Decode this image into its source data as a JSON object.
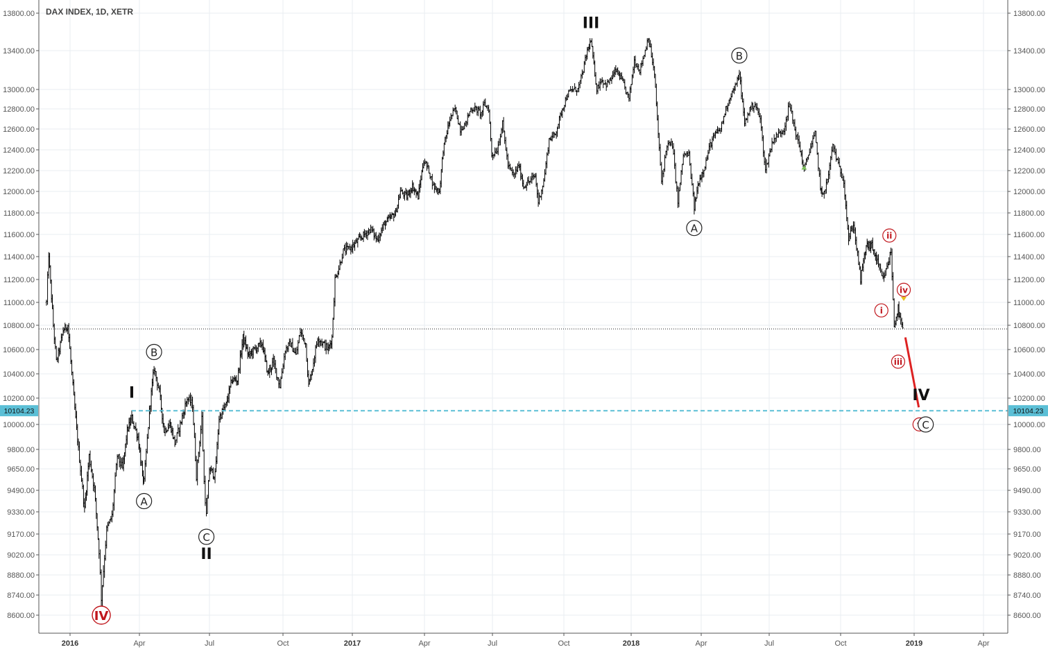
{
  "title": "DAX INDEX, 1D, XETR",
  "chart_data": {
    "type": "ohlc",
    "title": "DAX INDEX, 1D, XETR",
    "y_ticks": [
      "13800.00",
      "13400.00",
      "13000.00",
      "12800.00",
      "12600.00",
      "12400.00",
      "12200.00",
      "12000.00",
      "11800.00",
      "11600.00",
      "11400.00",
      "11200.00",
      "11000.00",
      "10800.00",
      "10600.00",
      "10400.00",
      "10200.00",
      "10000.00",
      "9800.00",
      "9650.00",
      "9490.00",
      "9330.00",
      "9170.00",
      "9020.00",
      "8880.00",
      "8740.00",
      "8600.00"
    ],
    "x_ticks": [
      "2016",
      "Apr",
      "Jul",
      "Oct",
      "2017",
      "Apr",
      "Jul",
      "Oct",
      "2018",
      "Apr",
      "Jul",
      "Oct",
      "2019",
      "Apr"
    ],
    "x_tick_years": [
      true,
      false,
      false,
      false,
      true,
      false,
      false,
      false,
      true,
      false,
      false,
      false,
      true,
      false
    ],
    "price_line": {
      "label": "10104.23",
      "value": 10104.23,
      "color": "#5bbfd6"
    },
    "current_price_line": 10770,
    "price_path": [
      [
        "2015-12-01",
        11000
      ],
      [
        "2015-12-04",
        11420
      ],
      [
        "2015-12-10",
        10800
      ],
      [
        "2015-12-14",
        10500
      ],
      [
        "2015-12-18",
        10600
      ],
      [
        "2015-12-23",
        10760
      ],
      [
        "2015-12-29",
        10800
      ],
      [
        "2016-01-06",
        10200
      ],
      [
        "2016-01-12",
        9800
      ],
      [
        "2016-01-20",
        9350
      ],
      [
        "2016-01-26",
        9750
      ],
      [
        "2016-02-02",
        9500
      ],
      [
        "2016-02-08",
        9050
      ],
      [
        "2016-02-11",
        8720
      ],
      [
        "2016-02-18",
        9200
      ],
      [
        "2016-02-25",
        9300
      ],
      [
        "2016-03-03",
        9750
      ],
      [
        "2016-03-10",
        9650
      ],
      [
        "2016-03-16",
        9950
      ],
      [
        "2016-03-22",
        10050
      ],
      [
        "2016-03-30",
        9900
      ],
      [
        "2016-04-05",
        9600
      ],
      [
        "2016-04-07",
        9550
      ],
      [
        "2016-04-14",
        10100
      ],
      [
        "2016-04-20",
        10450
      ],
      [
        "2016-04-27",
        10250
      ],
      [
        "2016-05-03",
        9950
      ],
      [
        "2016-05-11",
        10000
      ],
      [
        "2016-05-17",
        9850
      ],
      [
        "2016-05-24",
        10000
      ],
      [
        "2016-06-02",
        10200
      ],
      [
        "2016-06-09",
        10150
      ],
      [
        "2016-06-14",
        9600
      ],
      [
        "2016-06-21",
        10050
      ],
      [
        "2016-06-24",
        9550
      ],
      [
        "2016-06-27",
        9300
      ],
      [
        "2016-07-01",
        9650
      ],
      [
        "2016-07-08",
        9600
      ],
      [
        "2016-07-13",
        10050
      ],
      [
        "2016-07-22",
        10150
      ],
      [
        "2016-07-29",
        10350
      ],
      [
        "2016-08-05",
        10350
      ],
      [
        "2016-08-12",
        10700
      ],
      [
        "2016-08-19",
        10550
      ],
      [
        "2016-08-26",
        10600
      ],
      [
        "2016-09-05",
        10650
      ],
      [
        "2016-09-12",
        10400
      ],
      [
        "2016-09-19",
        10500
      ],
      [
        "2016-09-27",
        10300
      ],
      [
        "2016-10-04",
        10600
      ],
      [
        "2016-10-11",
        10650
      ],
      [
        "2016-10-18",
        10550
      ],
      [
        "2016-10-24",
        10750
      ],
      [
        "2016-10-31",
        10650
      ],
      [
        "2016-11-04",
        10300
      ],
      [
        "2016-11-09",
        10450
      ],
      [
        "2016-11-16",
        10700
      ],
      [
        "2016-11-23",
        10650
      ],
      [
        "2016-11-30",
        10600
      ],
      [
        "2016-12-05",
        10700
      ],
      [
        "2016-12-09",
        11200
      ],
      [
        "2016-12-14",
        11300
      ],
      [
        "2016-12-20",
        11450
      ],
      [
        "2016-12-30",
        11480
      ],
      [
        "2017-01-09",
        11550
      ],
      [
        "2017-01-16",
        11600
      ],
      [
        "2017-01-24",
        11650
      ],
      [
        "2017-02-01",
        11550
      ],
      [
        "2017-02-10",
        11700
      ],
      [
        "2017-02-17",
        11750
      ],
      [
        "2017-02-24",
        11800
      ],
      [
        "2017-03-02",
        12000
      ],
      [
        "2017-03-10",
        11950
      ],
      [
        "2017-03-17",
        12050
      ],
      [
        "2017-03-24",
        11950
      ],
      [
        "2017-03-31",
        12300
      ],
      [
        "2017-04-07",
        12200
      ],
      [
        "2017-04-13",
        12050
      ],
      [
        "2017-04-21",
        12000
      ],
      [
        "2017-04-26",
        12400
      ],
      [
        "2017-05-05",
        12700
      ],
      [
        "2017-05-12",
        12800
      ],
      [
        "2017-05-19",
        12600
      ],
      [
        "2017-05-26",
        12650
      ],
      [
        "2017-06-02",
        12800
      ],
      [
        "2017-06-09",
        12800
      ],
      [
        "2017-06-16",
        12750
      ],
      [
        "2017-06-20",
        12850
      ],
      [
        "2017-06-26",
        12800
      ],
      [
        "2017-06-30",
        12350
      ],
      [
        "2017-07-07",
        12400
      ],
      [
        "2017-07-14",
        12650
      ],
      [
        "2017-07-21",
        12250
      ],
      [
        "2017-07-28",
        12150
      ],
      [
        "2017-08-04",
        12250
      ],
      [
        "2017-08-10",
        12050
      ],
      [
        "2017-08-18",
        12100
      ],
      [
        "2017-08-25",
        12150
      ],
      [
        "2017-08-29",
        11900
      ],
      [
        "2017-09-05",
        12100
      ],
      [
        "2017-09-12",
        12500
      ],
      [
        "2017-09-20",
        12550
      ],
      [
        "2017-09-29",
        12800
      ],
      [
        "2017-10-06",
        12950
      ],
      [
        "2017-10-13",
        13000
      ],
      [
        "2017-10-20",
        13000
      ],
      [
        "2017-10-26",
        13150
      ],
      [
        "2017-11-02",
        13400
      ],
      [
        "2017-11-07",
        13500
      ],
      [
        "2017-11-15",
        13000
      ],
      [
        "2017-11-21",
        13100
      ],
      [
        "2017-11-28",
        13050
      ],
      [
        "2017-12-04",
        13100
      ],
      [
        "2017-12-11",
        13200
      ],
      [
        "2017-12-19",
        13100
      ],
      [
        "2017-12-29",
        12900
      ],
      [
        "2018-01-05",
        13300
      ],
      [
        "2018-01-12",
        13200
      ],
      [
        "2018-01-19",
        13400
      ],
      [
        "2018-01-23",
        13550
      ],
      [
        "2018-01-31",
        13150
      ],
      [
        "2018-02-06",
        12400
      ],
      [
        "2018-02-09",
        12100
      ],
      [
        "2018-02-16",
        12450
      ],
      [
        "2018-02-23",
        12450
      ],
      [
        "2018-03-02",
        11900
      ],
      [
        "2018-03-09",
        12350
      ],
      [
        "2018-03-16",
        12350
      ],
      [
        "2018-03-23",
        11850
      ],
      [
        "2018-03-29",
        12100
      ],
      [
        "2018-04-06",
        12250
      ],
      [
        "2018-04-13",
        12450
      ],
      [
        "2018-04-20",
        12550
      ],
      [
        "2018-04-27",
        12600
      ],
      [
        "2018-05-04",
        12800
      ],
      [
        "2018-05-11",
        12950
      ],
      [
        "2018-05-18",
        13050
      ],
      [
        "2018-05-22",
        13170
      ],
      [
        "2018-05-29",
        12650
      ],
      [
        "2018-06-05",
        12800
      ],
      [
        "2018-06-12",
        12850
      ],
      [
        "2018-06-19",
        12700
      ],
      [
        "2018-06-26",
        12200
      ],
      [
        "2018-06-29",
        12300
      ],
      [
        "2018-07-06",
        12500
      ],
      [
        "2018-07-13",
        12550
      ],
      [
        "2018-07-20",
        12600
      ],
      [
        "2018-07-27",
        12850
      ],
      [
        "2018-08-03",
        12600
      ],
      [
        "2018-08-10",
        12400
      ],
      [
        "2018-08-15",
        12200
      ],
      [
        "2018-08-22",
        12400
      ],
      [
        "2018-08-29",
        12550
      ],
      [
        "2018-09-05",
        12050
      ],
      [
        "2018-09-07",
        11950
      ],
      [
        "2018-09-14",
        12100
      ],
      [
        "2018-09-21",
        12450
      ],
      [
        "2018-09-28",
        12250
      ],
      [
        "2018-10-05",
        12100
      ],
      [
        "2018-10-11",
        11550
      ],
      [
        "2018-10-17",
        11700
      ],
      [
        "2018-10-26",
        11200
      ],
      [
        "2018-11-02",
        11500
      ],
      [
        "2018-11-09",
        11500
      ],
      [
        "2018-11-16",
        11350
      ],
      [
        "2018-11-20",
        11250
      ],
      [
        "2018-11-23",
        11200
      ],
      [
        "2018-11-28",
        11300
      ],
      [
        "2018-12-03",
        11450
      ],
      [
        "2018-12-07",
        10800
      ],
      [
        "2018-12-12",
        10950
      ],
      [
        "2018-12-14",
        10850
      ],
      [
        "2018-12-19",
        10750
      ]
    ],
    "forecast_line": {
      "from": [
        "2018-12-21",
        10700
      ],
      "to": [
        "2019-01-07",
        10130
      ],
      "color": "#dd2222"
    },
    "wave_labels": [
      {
        "text": "IV",
        "style": "circle-red",
        "date": "2016-02-11",
        "value": 8600
      },
      {
        "text": "I",
        "style": "bold",
        "date": "2016-03-22",
        "value": 10250
      },
      {
        "text": "A",
        "style": "circle",
        "date": "2016-04-07",
        "value": 9410
      },
      {
        "text": "B",
        "style": "circle",
        "date": "2016-04-20",
        "value": 10580
      },
      {
        "text": "C",
        "style": "circle",
        "date": "2016-06-27",
        "value": 9150
      },
      {
        "text": "II",
        "style": "bold",
        "date": "2016-06-27",
        "value": 9030
      },
      {
        "text": "III",
        "style": "bold",
        "date": "2017-11-07",
        "value": 13700
      },
      {
        "text": "A",
        "style": "circle",
        "date": "2018-03-23",
        "value": 11660
      },
      {
        "text": "B",
        "style": "circle",
        "date": "2018-05-22",
        "value": 13350
      },
      {
        "text": "ii",
        "style": "circle-small-red",
        "date": "2018-12-01",
        "value": 11590
      },
      {
        "text": "i",
        "style": "circle-small-red",
        "date": "2018-11-21",
        "value": 10930
      },
      {
        "text": "iv",
        "style": "circle-small-red",
        "date": "2018-12-19",
        "value": 11110
      },
      {
        "text": "iii",
        "style": "circle-small-red",
        "date": "2018-12-12",
        "value": 10500
      },
      {
        "text": "IV",
        "style": "bold",
        "date": "2019-01-10",
        "value": 10230
      },
      {
        "text": "v",
        "style": "circle-small-red",
        "date": "2019-01-08",
        "value": 10000
      },
      {
        "text": "C",
        "style": "circle",
        "date": "2019-01-16",
        "value": 10000
      }
    ]
  }
}
